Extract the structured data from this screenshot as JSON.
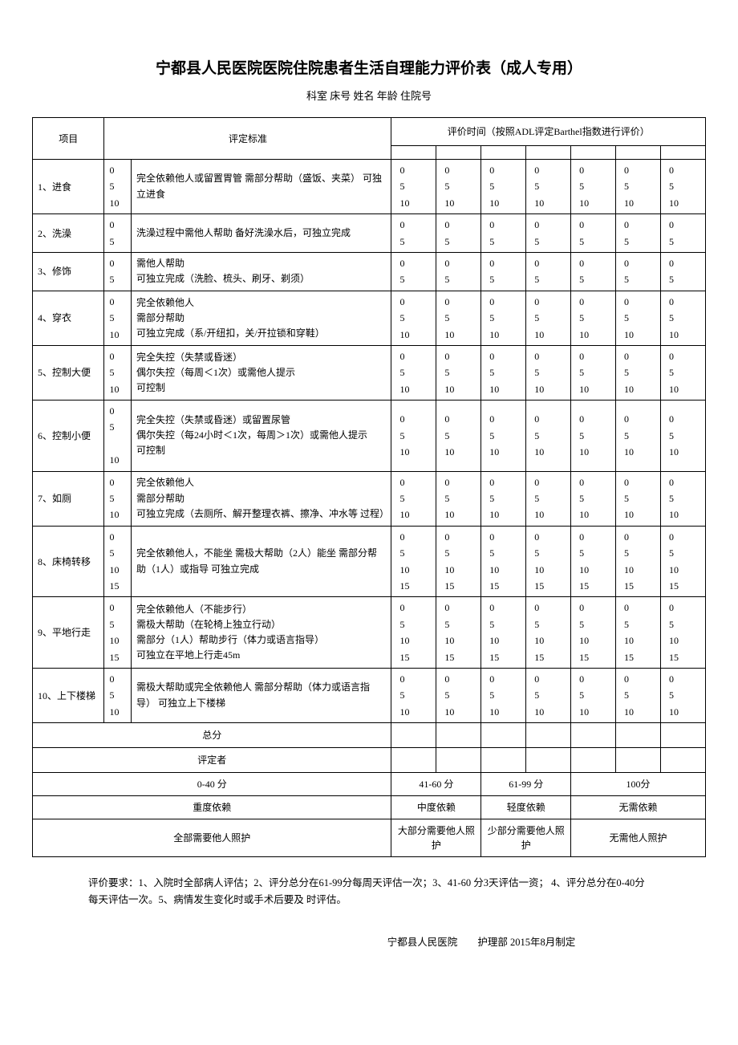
{
  "title": "宁都县人民医院医院住院患者生活自理能力评价表（成人专用）",
  "subtitle": "科室 床号 姓名 年龄 住院号",
  "header": {
    "item": "项目",
    "criteria": "评定标准",
    "eval_time": "评价时间（按照ADL评定Barthel指数进行评价）"
  },
  "eval_cols": 7,
  "items": [
    {
      "name": "1、进食",
      "scores": [
        "0",
        "5",
        "10"
      ],
      "criteria": "完全依赖他人或留置胃管 需部分帮助（盛饭、夹菜） 可独立进食"
    },
    {
      "name": "2、洗澡",
      "scores": [
        "0",
        "5"
      ],
      "criteria": "洗澡过程中需他人帮助 备好洗澡水后，可独立完成"
    },
    {
      "name": "3、修饰",
      "scores": [
        "0",
        "5"
      ],
      "criteria": "需他人帮助\n可独立完成（洗脸、梳头、刷牙、剃须）"
    },
    {
      "name": "4、穿衣",
      "scores": [
        "0",
        "5",
        "10"
      ],
      "criteria": "完全依赖他人\n需部分帮助\n可独立完成（系/开纽扣，关/开拉锁和穿鞋）"
    },
    {
      "name": "5、控制大便",
      "scores": [
        "0",
        "5",
        "10"
      ],
      "criteria": "完全失控（失禁或昏迷）\n偶尔失控（每周＜1次）或需他人提示\n可控制"
    },
    {
      "name": "6、控制小便",
      "scores": [
        "0",
        "5",
        "​",
        "10"
      ],
      "criteria": "完全失控（失禁或昏迷）或留置尿管\n偶尔失控（每24小时＜1次，每周＞1次）或需他人提示\n可控制",
      "eval_scores": [
        "0",
        "5",
        "10"
      ]
    },
    {
      "name": "7、如厕",
      "scores": [
        "0",
        "5",
        "10"
      ],
      "criteria": "完全依赖他人\n需部分帮助\n可独立完成（去厕所、解开整理衣裤、擦净、冲水等 过程）"
    },
    {
      "name": "8、床椅转移",
      "scores": [
        "0",
        "5",
        "10",
        "15"
      ],
      "criteria": "完全依赖他人，不能坐 需极大帮助（2人）能坐 需部分帮助（1人）或指导 可独立完成"
    },
    {
      "name": "9、平地行走",
      "scores": [
        "0",
        "5",
        "10",
        "15"
      ],
      "criteria": "完全依赖他人（不能步行）\n需极大帮助（在轮椅上独立行动）\n需部分（1人）帮助步行（体力或语言指导）\n可独立在平地上行走45m"
    },
    {
      "name": "10、上下楼梯",
      "scores": [
        "0",
        "5",
        "10"
      ],
      "criteria": "需极大帮助或完全依赖他人 需部分帮助（体力或语言指导） 可独立上下楼梯"
    }
  ],
  "total_label": "总分",
  "assessor_label": "评定者",
  "grades": {
    "ranges": [
      "0-40 分",
      "41-60 分",
      "61-99 分",
      "100分"
    ],
    "levels": [
      "重度依赖",
      "中度依赖",
      "轻度依赖",
      "无需依赖"
    ],
    "care": [
      "全部需要他人照护",
      "大部分需要他人照护",
      "少部分需要他人照护",
      "无需他人照护"
    ]
  },
  "notes": "评价要求：1、入院时全部病人评估；2、评分总分在61-99分每周天评估一次；3、41-60 分3天评估一资； 4、评分总分在0-40分每天评估一次。5、病情发生变化时或手术后要及 时评估。",
  "footer_org": "宁都县人民医院",
  "footer_dept": "护理部 2015年8月制定"
}
